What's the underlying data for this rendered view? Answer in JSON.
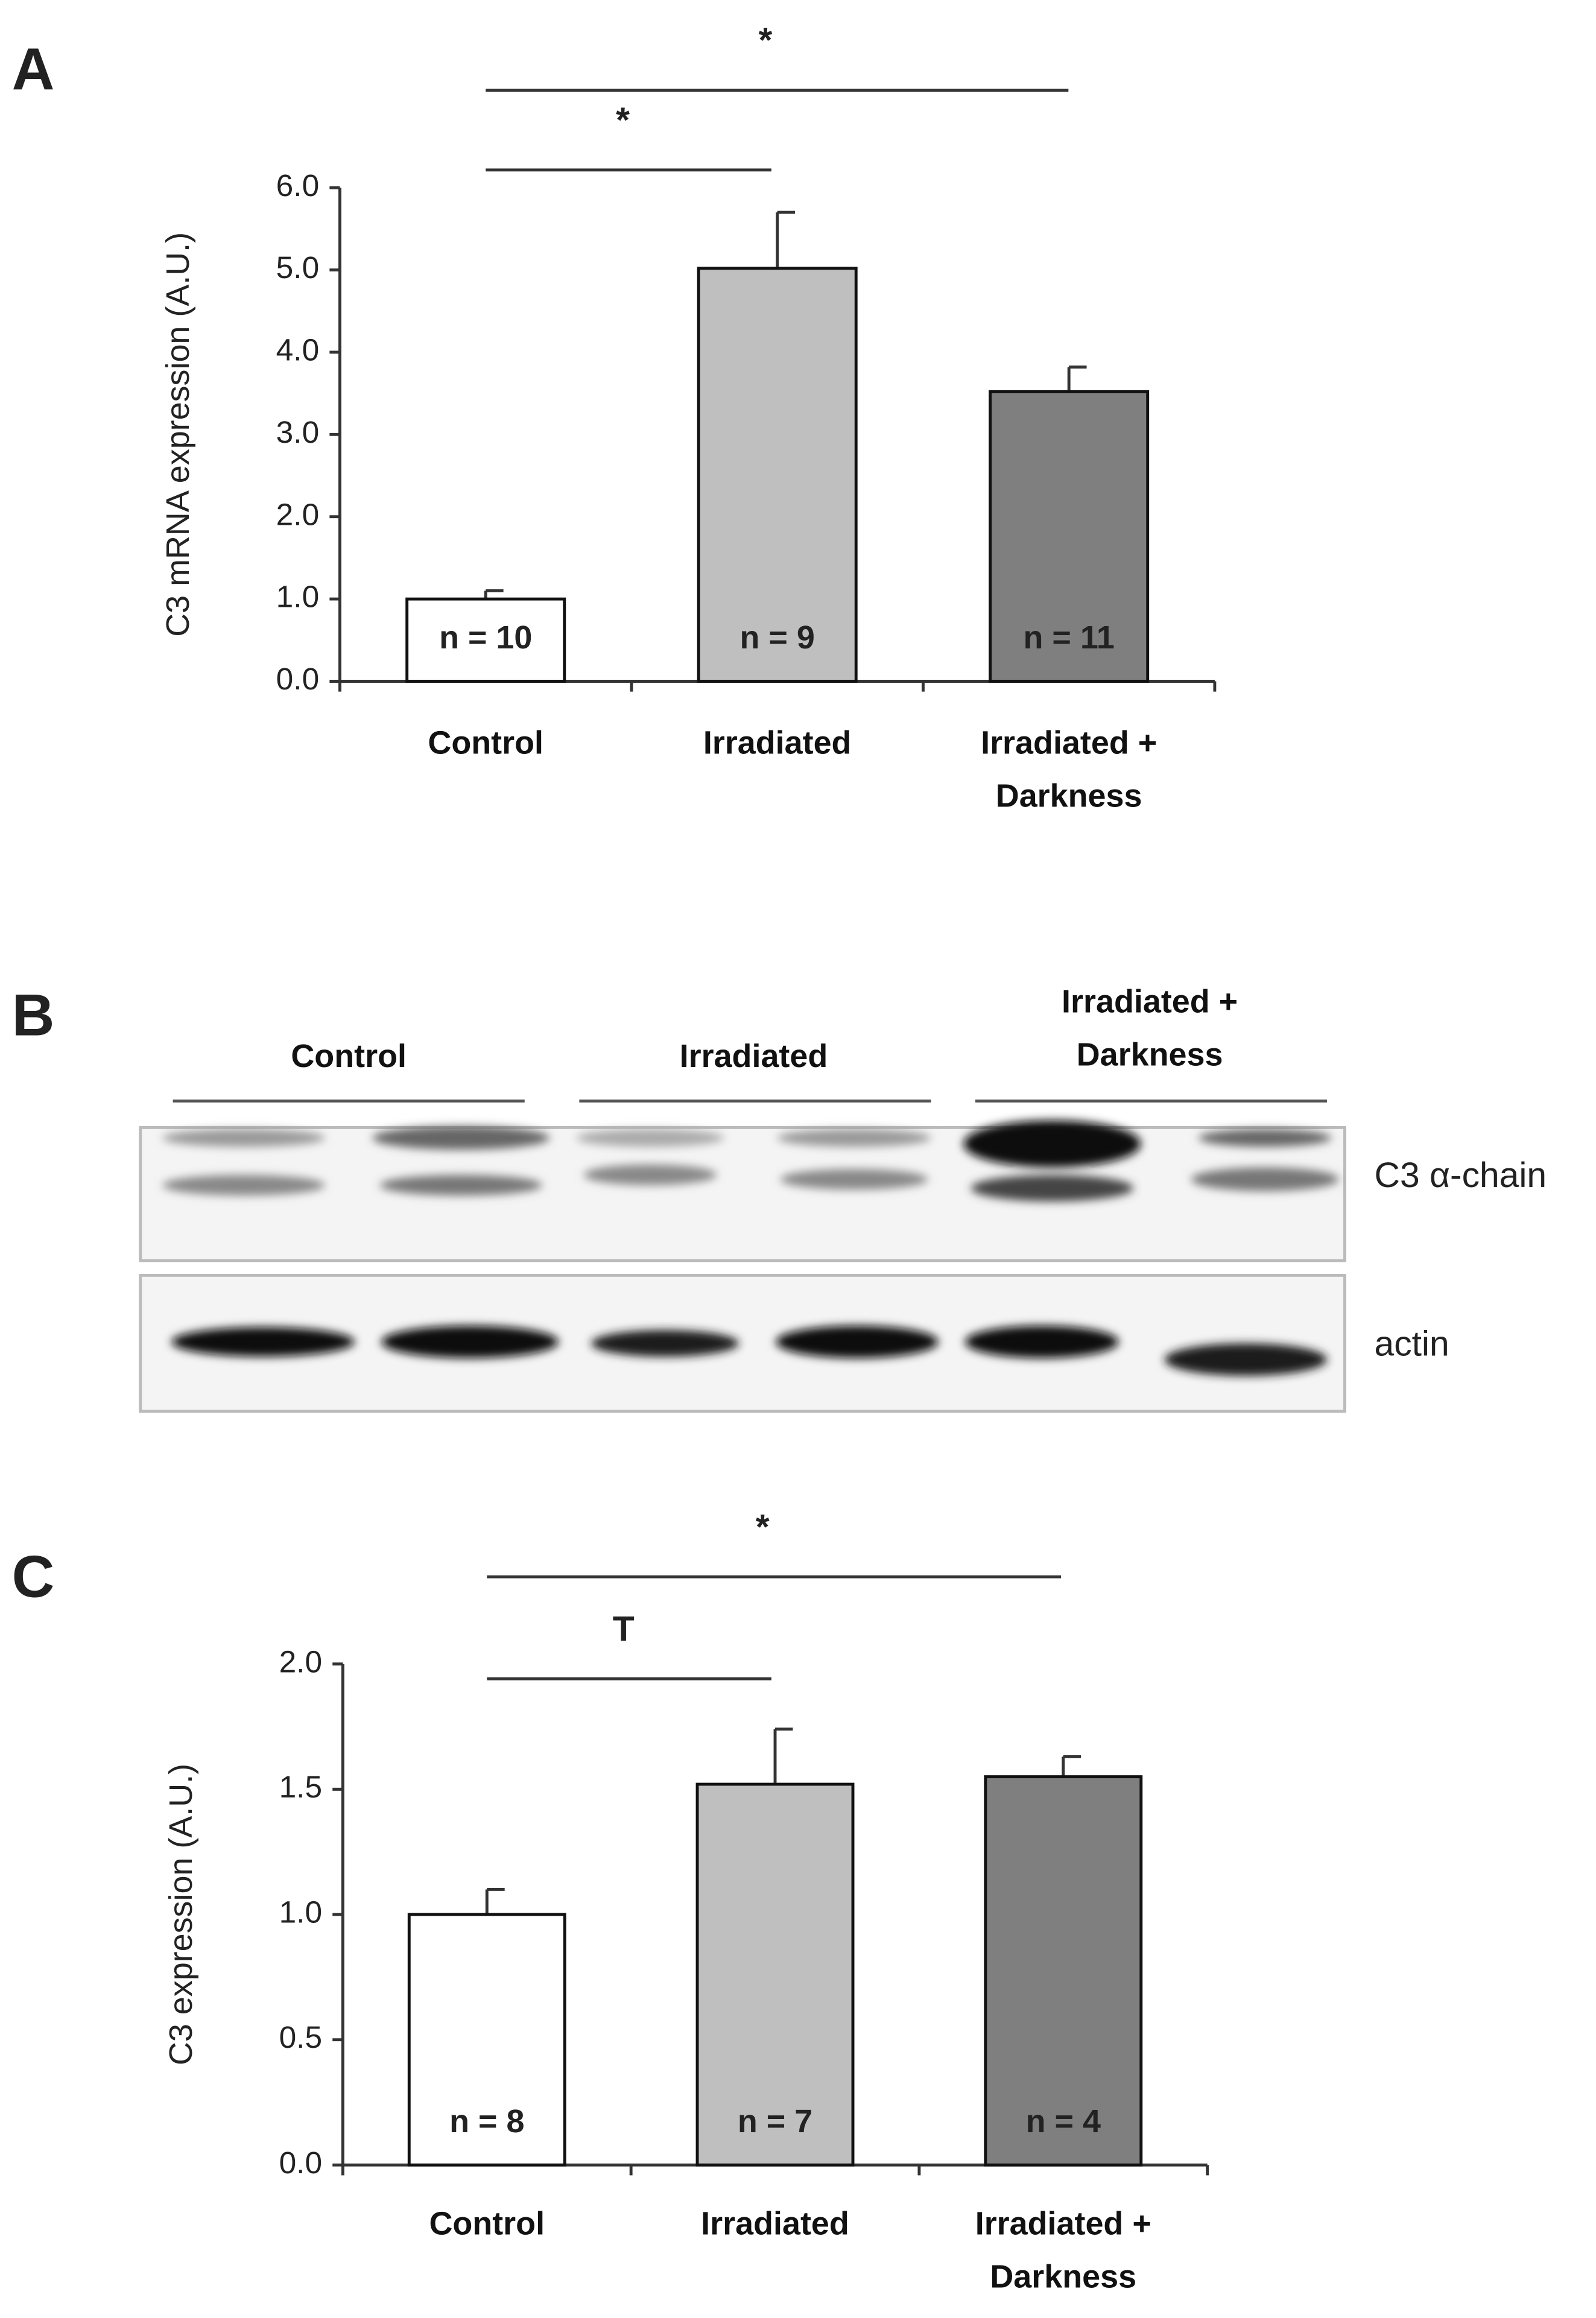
{
  "chart_data": [
    {
      "type": "bar",
      "panel_label": "A",
      "y_label": "C3 mRNA expression (A.U.)",
      "categories": [
        "Control",
        "Irradiated",
        "Irradiated + Darkness"
      ],
      "values": [
        1.0,
        5.02,
        3.52
      ],
      "errors": [
        0.1,
        0.68,
        0.3
      ],
      "colors": [
        "#ffffff",
        "#bfbfbf",
        "#7f7f7f"
      ],
      "bar_labels": [
        "n = 10",
        "n = 9",
        "n = 11"
      ],
      "significance": [
        "*",
        "*"
      ],
      "ylim": [
        0,
        6
      ],
      "yticks": [
        {
          "value": 0,
          "label": "0.0"
        },
        {
          "value": 1,
          "label": "1.0"
        },
        {
          "value": 2,
          "label": "2.0"
        },
        {
          "value": 3,
          "label": "3.0"
        },
        {
          "value": 4,
          "label": "4.0"
        },
        {
          "value": 5,
          "label": "5.0"
        },
        {
          "value": 6,
          "label": "6.0"
        }
      ]
    },
    {
      "type": "bar",
      "panel_label": "C",
      "y_label": "C3 expression (A.U.)",
      "categories": [
        "Control",
        "Irradiated",
        "Irradiated + Darkness"
      ],
      "values": [
        1.0,
        1.52,
        1.55
      ],
      "errors": [
        0.1,
        0.22,
        0.08
      ],
      "colors": [
        "#ffffff",
        "#bfbfbf",
        "#7f7f7f"
      ],
      "bar_labels": [
        "n = 8",
        "n = 7",
        "n = 4"
      ],
      "significance": [
        "T",
        "*"
      ],
      "ylim": [
        0,
        2
      ],
      "yticks": [
        {
          "value": 0,
          "label": "0.0"
        },
        {
          "value": 0.5,
          "label": "0.5"
        },
        {
          "value": 1,
          "label": "1.0"
        },
        {
          "value": 1.5,
          "label": "1.5"
        },
        {
          "value": 2,
          "label": "2.0"
        }
      ]
    }
  ],
  "blot": {
    "panel_label": "B",
    "groups": [
      "Control",
      "Irradiated",
      "Irradiated + Darkness"
    ],
    "bands": [
      "C3 α-chain",
      "actin"
    ]
  }
}
